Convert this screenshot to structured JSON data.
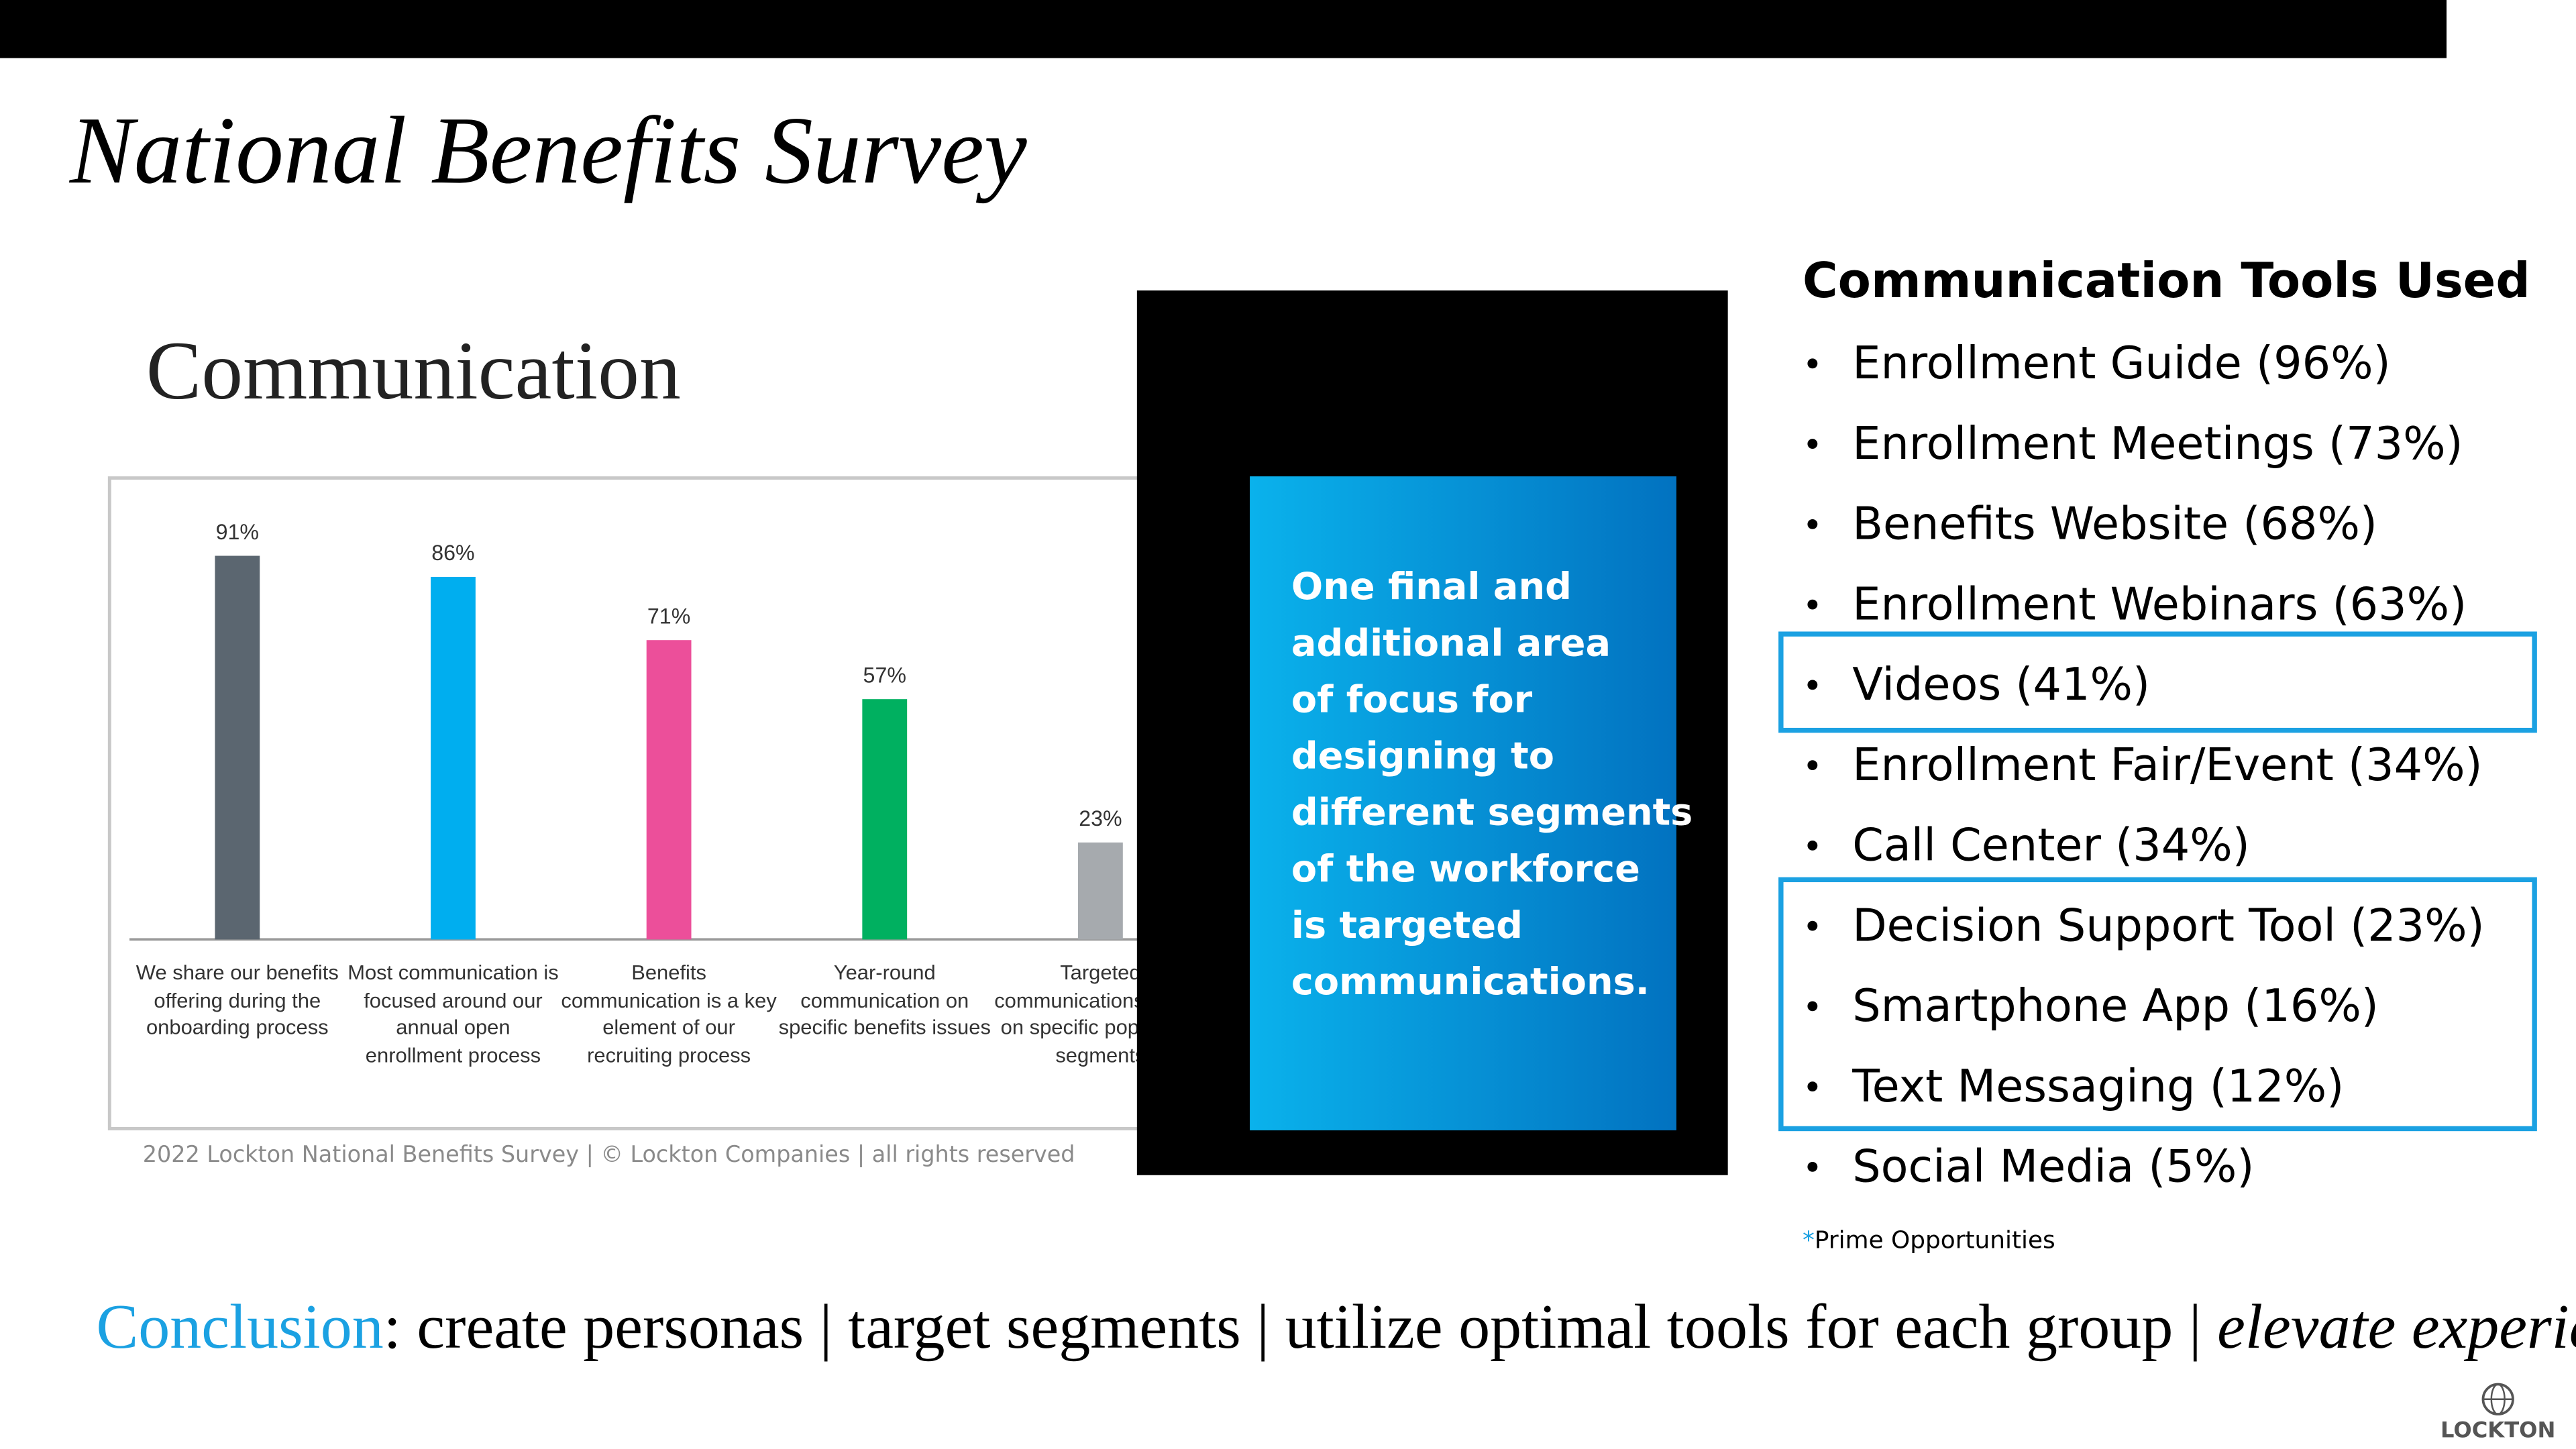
{
  "header": {
    "title": "National Benefits Survey"
  },
  "chart_data": {
    "type": "bar",
    "title": "Communication",
    "categories": [
      "We share our benefits offering during the onboarding process",
      "Most communication is focused around our annual open enrollment process",
      "Benefits communication is a key element of our recruiting process",
      "Year-round communication on specific benefits issues",
      "Targeted communications based on specific population segments"
    ],
    "values": [
      91,
      86,
      71,
      57,
      23
    ],
    "value_labels": [
      "91%",
      "86%",
      "71%",
      "57%",
      "23%"
    ],
    "colors": [
      "#5b6670",
      "#00aeef",
      "#ec4f9a",
      "#00b060",
      "#a6aaae"
    ],
    "ylim": [
      0,
      100
    ],
    "source": "2022 Lockton National Benefits Survey | © Lockton Companies | all rights reserved"
  },
  "callout": {
    "lines": [
      "One final and",
      "additional area",
      "of focus for",
      "designing to",
      "different segments",
      "of the workforce",
      "is targeted",
      "communications."
    ]
  },
  "tools": {
    "title": "Communication Tools Used",
    "items": [
      "Enrollment Guide (96%)",
      "Enrollment Meetings (73%)",
      "Benefits Website (68%)",
      "Enrollment Webinars (63%)",
      "Videos (41%)",
      "Enrollment Fair/Event (34%)",
      "Call Center (34%)",
      "Decision Support Tool (23%)",
      "Smartphone App (16%)",
      "Text Messaging (12%)",
      "Social Media (5%)"
    ],
    "note_mark": "*",
    "note": "Prime Opportunities"
  },
  "conclusion": {
    "label": "Conclusion",
    "text": ": create personas | target segments | utilize optimal tools for each group | ",
    "emphasis": "elevate experiences!"
  },
  "logo": {
    "text": "LOCKTON"
  }
}
